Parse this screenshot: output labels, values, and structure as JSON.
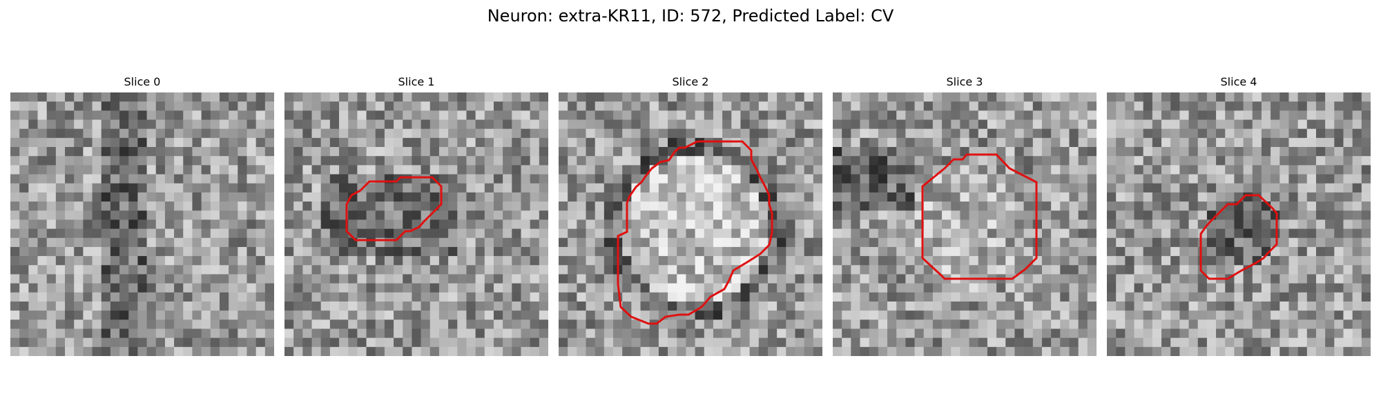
{
  "figure": {
    "title": "Neuron: extra-KR11, ID: 572, Predicted Label: CV"
  },
  "colors": {
    "contour": "#e01010",
    "colormap": "grayscale"
  },
  "panels": [
    {
      "title": "Slice 0",
      "has_contour": false,
      "seed": 11
    },
    {
      "title": "Slice 1",
      "has_contour": true,
      "seed": 23
    },
    {
      "title": "Slice 2",
      "has_contour": true,
      "seed": 37
    },
    {
      "title": "Slice 3",
      "has_contour": true,
      "seed": 51
    },
    {
      "title": "Slice 4",
      "has_contour": true,
      "seed": 67
    }
  ]
}
